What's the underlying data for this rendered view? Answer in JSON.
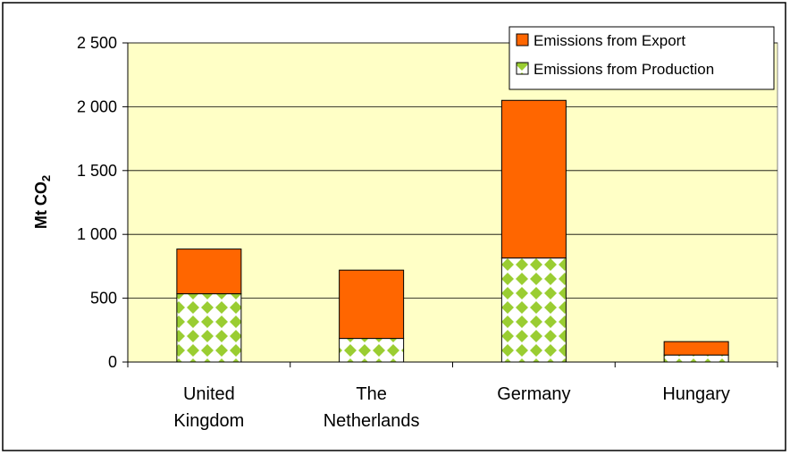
{
  "chart_data": {
    "type": "bar",
    "stacked": true,
    "categories": [
      [
        "United",
        "Kingdom"
      ],
      [
        "The",
        "Netherlands"
      ],
      [
        "Germany"
      ],
      [
        "Hungary"
      ]
    ],
    "series": [
      {
        "name": "Emissions from Production",
        "values": [
          535,
          185,
          815,
          55
        ],
        "color": "#9ACD32",
        "pattern": "checker"
      },
      {
        "name": "Emissions from Export",
        "values": [
          350,
          535,
          1235,
          105
        ],
        "color": "#FF6600"
      }
    ],
    "legend_order": [
      1,
      0
    ],
    "title": "",
    "ylabel": {
      "main": "Mt CO",
      "sub": "2"
    },
    "xlabel": "",
    "ylim": [
      0,
      2500
    ],
    "yticks": [
      0,
      500,
      1000,
      1500,
      2000,
      2500
    ],
    "ytick_labels": [
      "0",
      "500",
      "1 000",
      "1 500",
      "2 000",
      "2 500"
    ],
    "plot_background": "#FFFFC6",
    "grid": true,
    "legend_position": "top-right"
  }
}
